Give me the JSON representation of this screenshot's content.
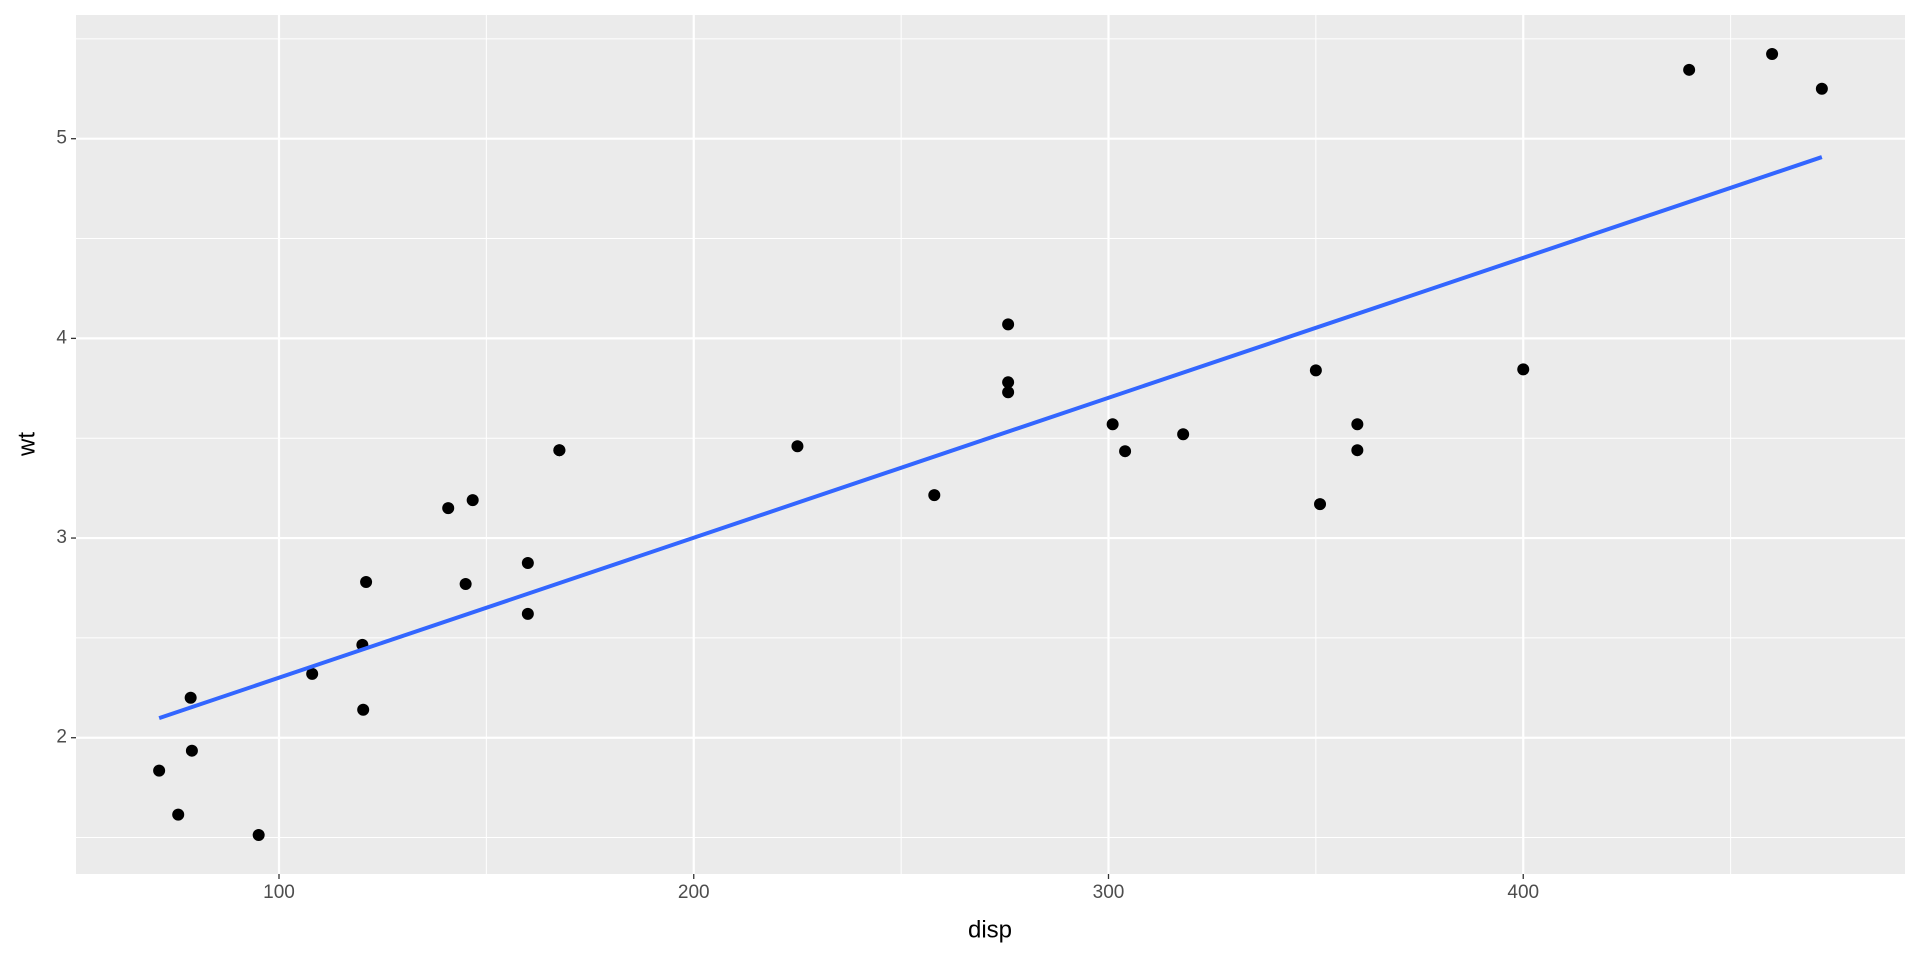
{
  "chart_data": {
    "type": "scatter",
    "x_label": "disp",
    "y_label": "wt",
    "x": [
      160,
      160,
      108,
      258,
      360,
      225,
      360,
      146.7,
      140.8,
      167.6,
      167.6,
      275.8,
      275.8,
      275.8,
      472,
      460,
      440,
      78.7,
      75.7,
      71.1,
      120.1,
      318,
      304,
      350,
      400,
      79,
      120.3,
      95.1,
      351,
      145,
      301,
      121
    ],
    "values": [
      2.62,
      2.875,
      2.32,
      3.215,
      3.44,
      3.46,
      3.57,
      3.19,
      3.15,
      3.44,
      3.44,
      4.07,
      3.73,
      3.78,
      5.25,
      5.424,
      5.345,
      2.2,
      1.615,
      1.835,
      2.465,
      3.52,
      3.435,
      3.84,
      3.845,
      1.935,
      2.14,
      1.513,
      3.17,
      2.77,
      3.57,
      2.78
    ],
    "color": "#000000",
    "trend": {
      "x": [
        71.1,
        472
      ],
      "values": [
        2.098,
        4.908
      ],
      "color": "#3366FF"
    },
    "xlim": [
      51.055,
      492.045
    ],
    "ylim": [
      1.31745,
      5.61955
    ],
    "xticks": [
      100,
      200,
      300,
      400
    ],
    "yticks": [
      2,
      3,
      4,
      5
    ],
    "xminor": [
      150,
      250,
      350,
      450
    ],
    "yminor": [
      1.5,
      2.5,
      3.5,
      4.5,
      5.5
    ],
    "grid": true
  }
}
